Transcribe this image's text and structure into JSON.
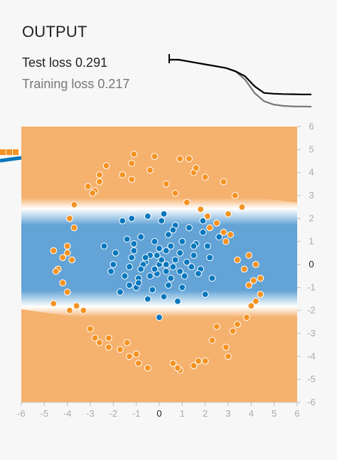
{
  "output": {
    "title": "OUTPUT",
    "test_loss_label": "Test loss",
    "test_loss_value": "0.291",
    "training_loss_label": "Training loss",
    "training_loss_value": "0.217"
  },
  "loss_curve": {
    "test": [
      0.5,
      0.5,
      0.49,
      0.48,
      0.47,
      0.46,
      0.45,
      0.43,
      0.4,
      0.34,
      0.3,
      0.295,
      0.293,
      0.292,
      0.291,
      0.291
    ],
    "training": [
      0.5,
      0.5,
      0.49,
      0.48,
      0.47,
      0.46,
      0.45,
      0.43,
      0.38,
      0.3,
      0.25,
      0.23,
      0.222,
      0.219,
      0.218,
      0.217
    ],
    "colors": {
      "test": "#000000",
      "training": "#777777"
    }
  },
  "chart_data": {
    "type": "scatter",
    "xlim": [
      -6,
      6
    ],
    "ylim": [
      -6,
      6
    ],
    "xticks": [
      -6,
      -5,
      -4,
      -3,
      -2,
      -1,
      0,
      1,
      2,
      3,
      4,
      5,
      6
    ],
    "yticks": [
      6,
      5,
      4,
      3,
      2,
      1,
      0,
      -1,
      -2,
      -3,
      -4,
      -5,
      -6
    ],
    "colors": {
      "orange": "#f59322",
      "blue": "#0877bd",
      "bg_orange": "#f5b16e",
      "bg_blue": "#63a3d6"
    },
    "series": [
      {
        "class": "orange",
        "x": [
          -1.1,
          -0.2,
          0.9,
          1.3,
          1.5,
          2.0,
          2.8,
          3.3,
          3.6,
          3.0,
          -2.3,
          -2.6,
          -2.8,
          -3.1,
          -3.7,
          -3.9,
          -4.0,
          -4.6,
          -4.2,
          -3.8,
          -4.0,
          -4.4,
          -4.5,
          -4.2,
          -4.0,
          -4.6,
          -3.6,
          -3.9,
          -3.3,
          -3.0,
          -2.8,
          -2.6,
          -2.2,
          -1.7,
          -1.3,
          0.6,
          0.9,
          1.5,
          2.0,
          2.3,
          2.9,
          3.2,
          3.4,
          3.8,
          4.0,
          4.2,
          4.4,
          4.1,
          3.7,
          3.4,
          3.1,
          2.8,
          2.5,
          2.1,
          1.8,
          1.2,
          0.7,
          0.3,
          -0.4,
          -1.2,
          -1.6,
          -2.6,
          -2.9,
          -3.7,
          -2.2,
          -1.4,
          -0.5,
          -1.0,
          1.7,
          3.0,
          3.9,
          4.4,
          2.9,
          2.2,
          3.9,
          4.2,
          1.6,
          0.8,
          -0.9,
          -1.2,
          2.5
        ],
        "y": [
          4.8,
          4.7,
          4.6,
          4.6,
          4.0,
          3.8,
          3.6,
          3.0,
          2.5,
          2.2,
          4.3,
          3.6,
          3.2,
          3.4,
          2.6,
          2.0,
          0.8,
          0.6,
          0.3,
          0.2,
          0.5,
          -0.2,
          -0.3,
          -0.8,
          -1.2,
          -1.7,
          -1.8,
          -2.0,
          -2.0,
          -2.8,
          -3.2,
          -3.4,
          -3.6,
          -3.7,
          -4.0,
          -4.3,
          -4.6,
          -4.4,
          -4.2,
          -3.3,
          -3.6,
          -2.9,
          -2.6,
          -2.3,
          -1.8,
          -1.6,
          -1.3,
          -0.7,
          -0.2,
          0.2,
          1.3,
          1.4,
          1.8,
          2.1,
          2.4,
          2.7,
          3.1,
          3.5,
          4.1,
          4.4,
          3.9,
          3.9,
          3.1,
          1.6,
          -3.2,
          -3.4,
          -4.5,
          -3.9,
          -4.2,
          -4.0,
          0.4,
          -0.6,
          1.0,
          1.6,
          -0.9,
          0.0,
          4.2,
          -4.5,
          -4.3,
          3.7,
          -2.7
        ]
      },
      {
        "class": "blue",
        "x": [
          -1.2,
          -0.5,
          0.1,
          0.7,
          1.3,
          1.9,
          -1.4,
          -0.8,
          -0.2,
          0.4,
          1.0,
          1.6,
          2.1,
          -1.9,
          -1.1,
          -0.4,
          0.3,
          0.9,
          1.5,
          2.2,
          -2.0,
          -1.3,
          -0.6,
          0.0,
          0.6,
          1.2,
          1.8,
          -1.5,
          -0.9,
          -0.1,
          0.5,
          1.1,
          1.7,
          -1.0,
          -0.3,
          0.4,
          1.0,
          -0.5,
          0.2,
          0.8,
          -2.4,
          -1.7,
          2.3,
          2.6,
          -0.6,
          0.1,
          0.7,
          -0.2,
          0.3,
          -0.7,
          1.4,
          -1.2,
          0.0,
          0.5,
          -0.9,
          0.2,
          1.9,
          -1.6,
          2.0,
          -0.1,
          0.9,
          -1.3,
          0.6,
          1.5,
          -0.4,
          -2.1,
          -1.1,
          0.3,
          0.0,
          -0.8
        ],
        "y": [
          2.0,
          2.1,
          1.9,
          1.7,
          1.6,
          1.4,
          1.1,
          1.2,
          1.0,
          1.3,
          1.0,
          0.9,
          0.8,
          0.5,
          0.6,
          0.4,
          0.6,
          0.5,
          0.4,
          0.3,
          0.0,
          -0.1,
          0.1,
          0.0,
          -0.1,
          0.1,
          -0.2,
          -0.5,
          -0.6,
          -0.4,
          -0.6,
          -0.5,
          -0.4,
          -1.0,
          -1.1,
          -0.9,
          -1.0,
          -1.5,
          -1.4,
          -1.6,
          0.8,
          -1.2,
          -0.6,
          1.2,
          0.3,
          0.2,
          0.2,
          -0.2,
          -0.3,
          0.0,
          -0.1,
          0.3,
          0.7,
          0.8,
          -0.8,
          2.2,
          1.9,
          1.9,
          -1.3,
          0.4,
          -0.3,
          -0.9,
          1.5,
          0.8,
          -0.5,
          -0.3,
          0.9,
          0.0,
          -2.3,
          -0.2
        ]
      }
    ]
  }
}
